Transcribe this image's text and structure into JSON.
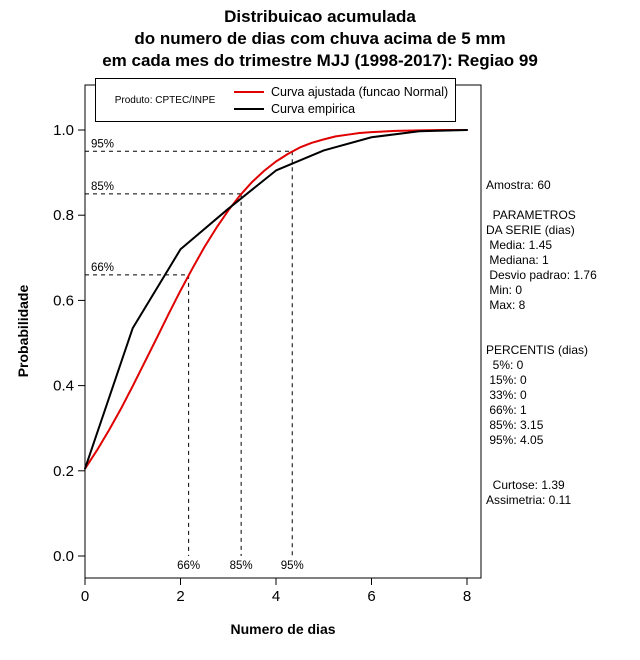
{
  "title": {
    "line1": "Distribuicao acumulada",
    "line2": "do numero de dias com chuva acima de 5 mm",
    "line3": "em cada mes do trimestre MJJ (1998-2017): Regiao 99"
  },
  "legend": {
    "source_label": "Produto: CPTEC/INPE",
    "entries": [
      {
        "label": "Curva ajustada (funcao Normal)",
        "color": "#e00000"
      },
      {
        "label": "Curva empirica",
        "color": "#000000"
      }
    ]
  },
  "chart_data": {
    "type": "line",
    "title": "Distribuicao acumulada do numero de dias com chuva acima de 5 mm em cada mes do trimestre MJJ (1998-2017): Regiao 99",
    "xlabel": "Numero de dias",
    "ylabel": "Probabilidade",
    "xlim": [
      0,
      8
    ],
    "ylim": [
      0,
      1
    ],
    "grid": false,
    "legend_position": "top-inside",
    "xtick_labels": [
      "0",
      "2",
      "4",
      "6",
      "8"
    ],
    "ytick_labels": [
      "0.0",
      "0.2",
      "0.4",
      "0.6",
      "0.8",
      "1.0"
    ],
    "series": [
      {
        "name": "Curva ajustada (funcao Normal)",
        "color": "#e00000",
        "x": [
          0,
          0.25,
          0.5,
          0.75,
          1,
          1.25,
          1.5,
          1.75,
          2,
          2.25,
          2.5,
          2.75,
          3,
          3.25,
          3.5,
          3.75,
          4,
          4.25,
          4.5,
          4.75,
          5,
          5.25,
          5.5,
          5.75,
          6,
          6.5,
          7,
          7.5,
          8
        ],
        "y": [
          0.205,
          0.248,
          0.295,
          0.345,
          0.399,
          0.455,
          0.511,
          0.568,
          0.623,
          0.675,
          0.725,
          0.77,
          0.811,
          0.847,
          0.878,
          0.904,
          0.926,
          0.944,
          0.959,
          0.97,
          0.978,
          0.985,
          0.989,
          0.993,
          0.995,
          0.998,
          0.999,
          1.0,
          1.0
        ]
      },
      {
        "name": "Curva empirica",
        "color": "#000000",
        "x": [
          0,
          1,
          2,
          3,
          4,
          5,
          6,
          7,
          8
        ],
        "y": [
          0.205,
          0.535,
          0.72,
          0.815,
          0.905,
          0.952,
          0.983,
          0.997,
          1.0
        ]
      }
    ],
    "percentile_guides": [
      {
        "label": "66%",
        "x": 2.17,
        "y": 0.66
      },
      {
        "label": "85%",
        "x": 3.27,
        "y": 0.85
      },
      {
        "label": "95%",
        "x": 4.34,
        "y": 0.95
      }
    ]
  },
  "stats_panel": {
    "lines": [
      "Amostra: 60",
      "",
      "  PARAMETROS",
      "DA SERIE (dias)",
      " Media: 1.45",
      " Mediana: 1",
      " Desvio padrao: 1.76",
      " Min: 0",
      " Max: 8",
      "",
      "",
      "PERCENTIS (dias)",
      "  5%: 0",
      " 15%: 0",
      " 33%: 0",
      " 66%: 1",
      " 85%: 3.15",
      " 95%: 4.05",
      "",
      "",
      "  Curtose: 1.39",
      "Assimetria: 0.11"
    ]
  }
}
